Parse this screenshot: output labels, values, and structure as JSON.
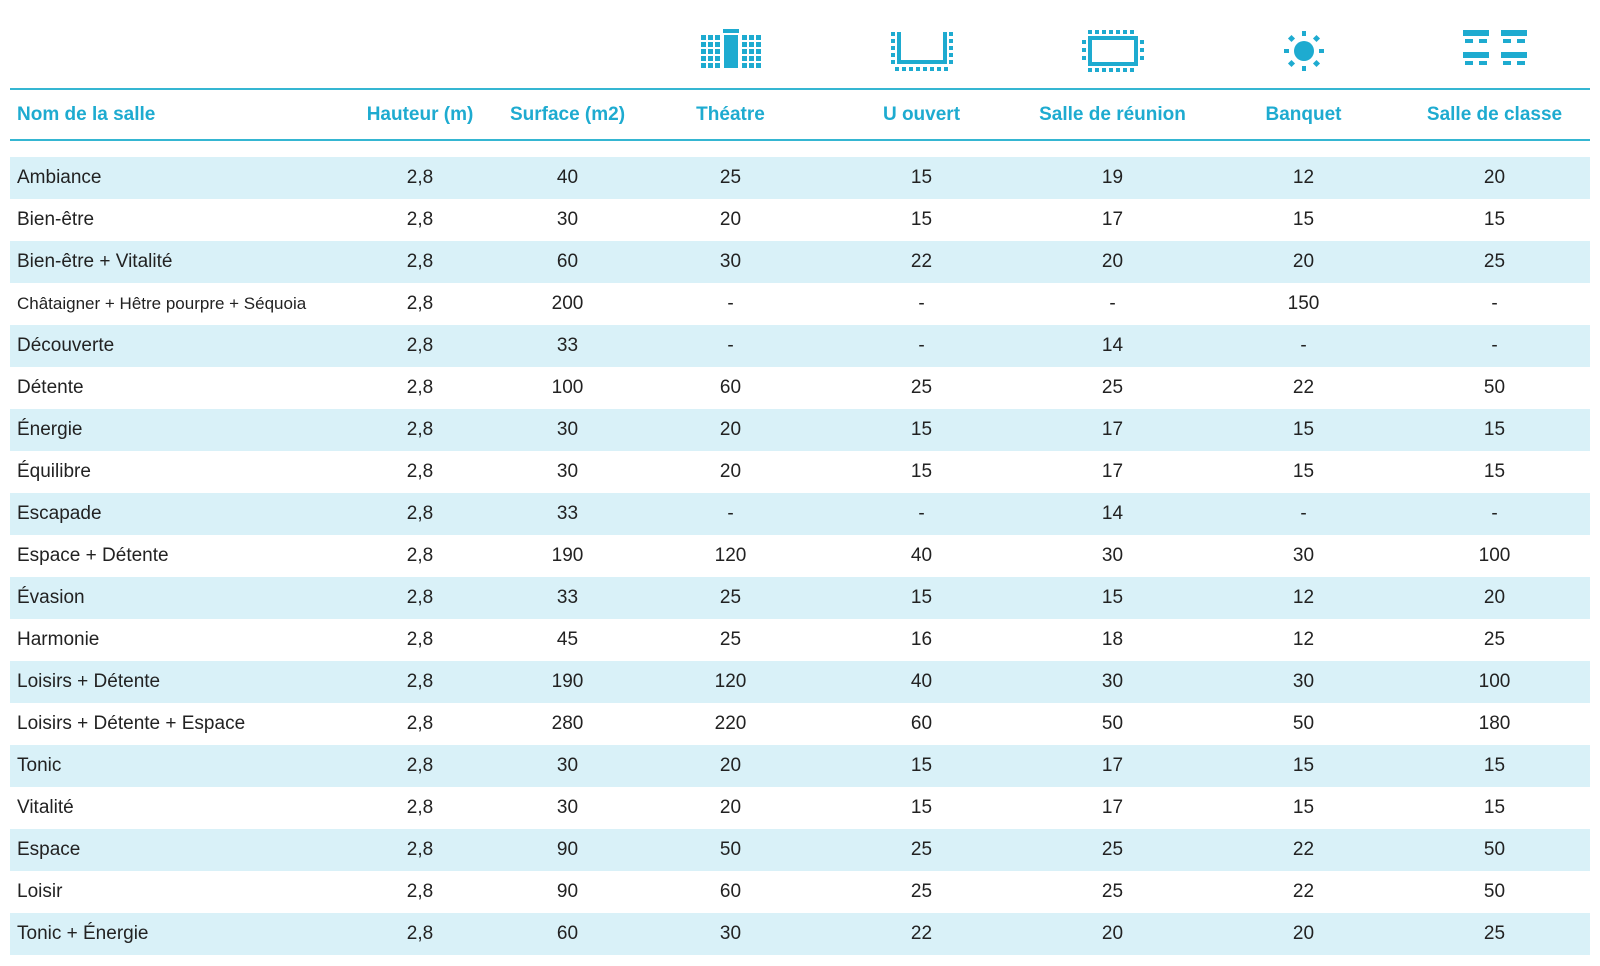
{
  "colors": {
    "accent": "#1eabd0",
    "rule": "#35b6d2",
    "row_shade": "#d9f1f8"
  },
  "icons": [
    "theatre-icon",
    "u-shape-icon",
    "boardroom-icon",
    "banquet-icon",
    "classroom-icon"
  ],
  "columns": [
    "Nom de la salle",
    "Hauteur (m)",
    "Surface (m2)",
    "Théatre",
    "U ouvert",
    "Salle de réunion",
    "Banquet",
    "Salle de classe"
  ],
  "rows": [
    [
      "Ambiance",
      "2,8",
      "40",
      "25",
      "15",
      "19",
      "12",
      "20"
    ],
    [
      "Bien-être",
      "2,8",
      "30",
      "20",
      "15",
      "17",
      "15",
      "15"
    ],
    [
      "Bien-être + Vitalité",
      "2,8",
      "60",
      "30",
      "22",
      "20",
      "20",
      "25"
    ],
    [
      "Châtaigner + Hêtre pourpre + Séquoia",
      "2,8",
      "200",
      "-",
      "-",
      "-",
      "150",
      "-"
    ],
    [
      "Découverte",
      "2,8",
      "33",
      "-",
      "-",
      "14",
      "-",
      "-"
    ],
    [
      "Détente",
      "2,8",
      "100",
      "60",
      "25",
      "25",
      "22",
      "50"
    ],
    [
      "Énergie",
      "2,8",
      "30",
      "20",
      "15",
      "17",
      "15",
      "15"
    ],
    [
      "Équilibre",
      "2,8",
      "30",
      "20",
      "15",
      "17",
      "15",
      "15"
    ],
    [
      "Escapade",
      "2,8",
      "33",
      "-",
      "-",
      "14",
      "-",
      "-"
    ],
    [
      "Espace + Détente",
      "2,8",
      "190",
      "120",
      "40",
      "30",
      "30",
      "100"
    ],
    [
      "Évasion",
      "2,8",
      "33",
      "25",
      "15",
      "15",
      "12",
      "20"
    ],
    [
      "Harmonie",
      "2,8",
      "45",
      "25",
      "16",
      "18",
      "12",
      "25"
    ],
    [
      "Loisirs + Détente",
      "2,8",
      "190",
      "120",
      "40",
      "30",
      "30",
      "100"
    ],
    [
      "Loisirs + Détente + Espace",
      "2,8",
      "280",
      "220",
      "60",
      "50",
      "50",
      "180"
    ],
    [
      "Tonic",
      "2,8",
      "30",
      "20",
      "15",
      "17",
      "15",
      "15"
    ],
    [
      "Vitalité",
      "2,8",
      "30",
      "20",
      "15",
      "17",
      "15",
      "15"
    ],
    [
      "Espace",
      "2,8",
      "90",
      "50",
      "25",
      "25",
      "22",
      "50"
    ],
    [
      "Loisir",
      "2,8",
      "90",
      "60",
      "25",
      "25",
      "22",
      "50"
    ],
    [
      "Tonic + Énergie",
      "2,8",
      "60",
      "30",
      "22",
      "20",
      "20",
      "25"
    ]
  ]
}
